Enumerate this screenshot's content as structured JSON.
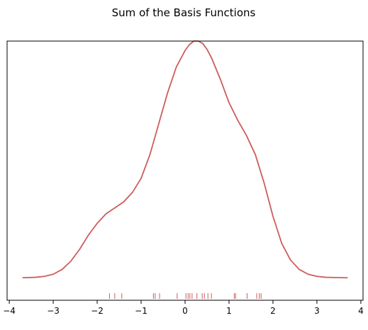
{
  "chart_data": {
    "type": "line",
    "title": "Sum of the Basis Functions",
    "xlabel": "",
    "ylabel": "",
    "xlim": [
      -4.05,
      4.05
    ],
    "ylim": [
      -0.095,
      1.0
    ],
    "grid": false,
    "line_color": "#cd5c5c",
    "rug_color": "#cd5c5c",
    "x_ticks": [
      -4,
      -3,
      -2,
      -1,
      0,
      1,
      2,
      3,
      4
    ],
    "x_tick_labels": [
      "−4",
      "−3",
      "−2",
      "−1",
      "0",
      "1",
      "2",
      "3",
      "4"
    ],
    "series": [
      {
        "x": [
          -3.7,
          -3.4,
          -3.2,
          -3.0,
          -2.8,
          -2.6,
          -2.4,
          -2.2,
          -2.0,
          -1.8,
          -1.6,
          -1.4,
          -1.2,
          -1.0,
          -0.8,
          -0.6,
          -0.4,
          -0.2,
          0.0,
          0.1,
          0.2,
          0.3,
          0.4,
          0.5,
          0.6,
          0.8,
          1.0,
          1.2,
          1.4,
          1.6,
          1.8,
          2.0,
          2.2,
          2.4,
          2.6,
          2.8,
          3.0,
          3.2,
          3.4,
          3.7
        ],
        "y": [
          0.0,
          0.002,
          0.006,
          0.015,
          0.035,
          0.07,
          0.12,
          0.18,
          0.23,
          0.27,
          0.295,
          0.32,
          0.36,
          0.42,
          0.52,
          0.65,
          0.78,
          0.89,
          0.96,
          0.985,
          1.0,
          1.0,
          0.99,
          0.965,
          0.93,
          0.84,
          0.74,
          0.665,
          0.6,
          0.52,
          0.4,
          0.26,
          0.145,
          0.075,
          0.035,
          0.015,
          0.006,
          0.002,
          0.001,
          0.0
        ]
      }
    ],
    "rug_x": [
      -1.72,
      -1.6,
      -1.44,
      -0.72,
      -0.68,
      -0.58,
      -0.18,
      0.02,
      0.07,
      0.11,
      0.16,
      0.27,
      0.39,
      0.44,
      0.52,
      0.6,
      1.12,
      1.15,
      1.41,
      1.63,
      1.69,
      1.73
    ]
  }
}
